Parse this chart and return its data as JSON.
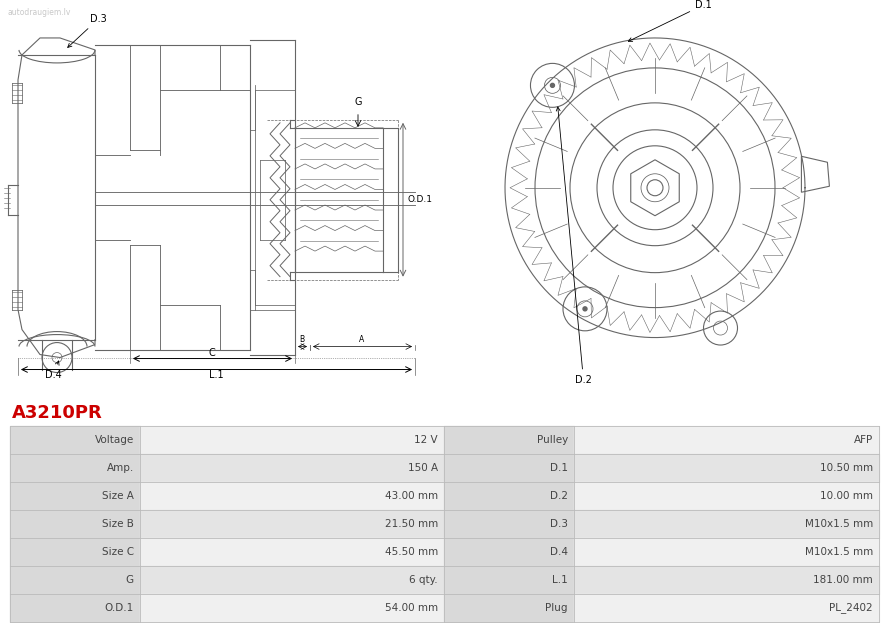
{
  "title": "A3210PR",
  "title_color": "#cc0000",
  "bg_color": "#ffffff",
  "table_data": [
    [
      "Voltage",
      "12 V",
      "Pulley",
      "AFP"
    ],
    [
      "Amp.",
      "150 A",
      "D.1",
      "10.50 mm"
    ],
    [
      "Size A",
      "43.00 mm",
      "D.2",
      "10.00 mm"
    ],
    [
      "Size B",
      "21.50 mm",
      "D.3",
      "M10x1.5 mm"
    ],
    [
      "Size C",
      "45.50 mm",
      "D.4",
      "M10x1.5 mm"
    ],
    [
      "G",
      "6 qty.",
      "L.1",
      "181.00 mm"
    ],
    [
      "O.D.1",
      "54.00 mm",
      "Plug",
      "PL_2402"
    ]
  ],
  "row_bg_label": "#d9d9d9",
  "row_bg_odd": "#f0f0f0",
  "row_bg_even": "#e4e4e4",
  "line_color": "#bbbbbb",
  "table_text_color": "#444444",
  "dark_line": "#666666",
  "watermark_text": "autodraugiem.lv"
}
